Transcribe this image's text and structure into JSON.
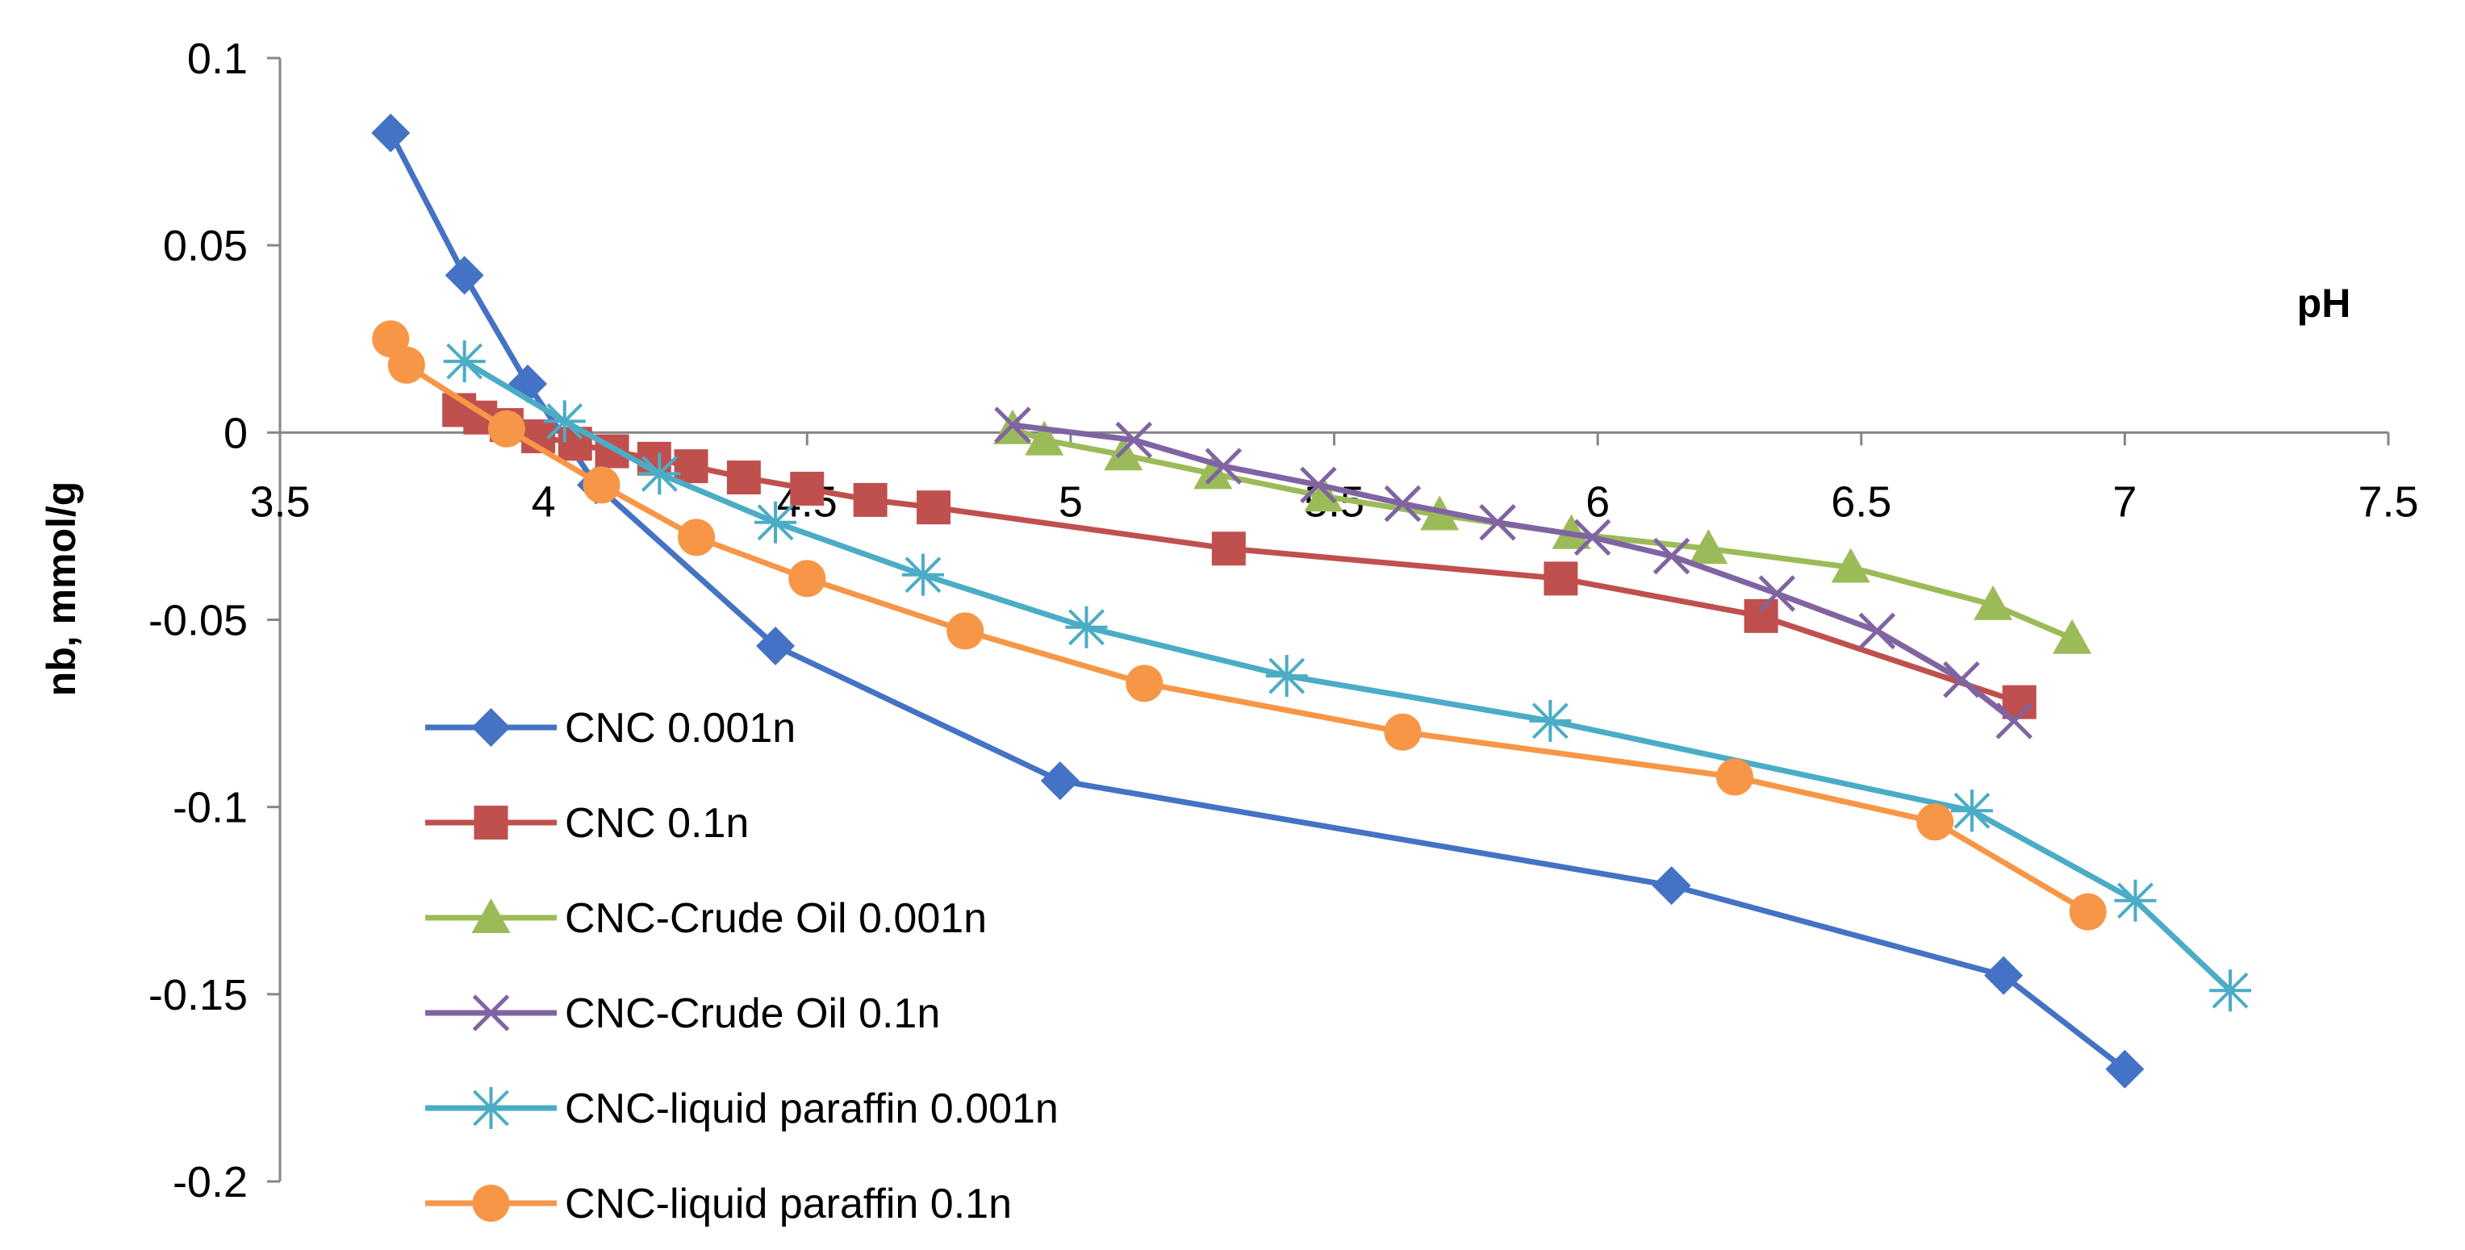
{
  "chart_data": {
    "type": "line",
    "title": "",
    "xlabel": "pH",
    "ylabel": "nb, mmol/g",
    "xlim": [
      3.5,
      7.5
    ],
    "ylim": [
      -0.2,
      0.1
    ],
    "x_ticks": [
      "3.5",
      "4",
      "4.5",
      "5",
      "5.5",
      "6",
      "6.5",
      "7",
      "7.5"
    ],
    "y_ticks": [
      "0.1",
      "0.05",
      "0",
      "-0.05",
      "-0.1",
      "-0.15",
      "-0.2"
    ],
    "x_tick_values": [
      3.5,
      4,
      4.5,
      5,
      5.5,
      6,
      6.5,
      7,
      7.5
    ],
    "y_tick_values": [
      0.1,
      0.05,
      0,
      -0.05,
      -0.1,
      -0.15,
      -0.2
    ],
    "legend_position": "lower-left",
    "series": [
      {
        "name": "CNC 0.001n",
        "color": "#4472C4",
        "marker": "diamond",
        "x": [
          3.71,
          3.85,
          3.97,
          4.1,
          4.44,
          4.98,
          6.14,
          6.77,
          7.0
        ],
        "y": [
          0.08,
          0.042,
          0.013,
          -0.014,
          -0.057,
          -0.093,
          -0.121,
          -0.145,
          -0.17
        ]
      },
      {
        "name": "CNC 0.1n",
        "color": "#C0504D",
        "marker": "square",
        "x": [
          3.84,
          3.88,
          3.93,
          3.99,
          4.06,
          4.13,
          4.21,
          4.28,
          4.38,
          4.5,
          4.62,
          4.74,
          5.3,
          5.93,
          6.31,
          6.8
        ],
        "y": [
          0.006,
          0.004,
          0.002,
          -0.001,
          -0.003,
          -0.005,
          -0.007,
          -0.009,
          -0.012,
          -0.015,
          -0.018,
          -0.02,
          -0.031,
          -0.039,
          -0.049,
          -0.072
        ]
      },
      {
        "name": "CNC-Crude Oil 0.001n",
        "color": "#9BBB59",
        "marker": "triangle",
        "x": [
          4.89,
          4.95,
          5.1,
          5.27,
          5.48,
          5.7,
          5.95,
          6.21,
          6.48,
          6.75,
          6.9
        ],
        "y": [
          0.001,
          -0.002,
          -0.006,
          -0.011,
          -0.017,
          -0.022,
          -0.027,
          -0.031,
          -0.036,
          -0.046,
          -0.055
        ]
      },
      {
        "name": "CNC-Crude Oil 0.1n",
        "color": "#8064A2",
        "marker": "x",
        "x": [
          4.89,
          5.12,
          5.29,
          5.47,
          5.63,
          5.81,
          5.99,
          6.14,
          6.34,
          6.53,
          6.69,
          6.79
        ],
        "y": [
          0.002,
          -0.002,
          -0.009,
          -0.014,
          -0.019,
          -0.024,
          -0.028,
          -0.033,
          -0.043,
          -0.053,
          -0.066,
          -0.077
        ]
      },
      {
        "name": "CNC-liquid paraffin 0.001n",
        "color": "#4BACC6",
        "marker": "star",
        "x": [
          3.85,
          4.04,
          4.22,
          4.44,
          4.72,
          5.03,
          5.41,
          5.91,
          6.71,
          7.02,
          7.2
        ],
        "y": [
          0.019,
          0.003,
          -0.011,
          -0.024,
          -0.038,
          -0.052,
          -0.065,
          -0.077,
          -0.101,
          -0.125,
          -0.149
        ]
      },
      {
        "name": "CNC-liquid paraffin 0.1n",
        "color": "#F79646",
        "marker": "circle",
        "x": [
          3.71,
          3.74,
          3.93,
          4.11,
          4.29,
          4.5,
          4.8,
          5.14,
          5.63,
          6.26,
          6.64,
          6.93
        ],
        "y": [
          0.025,
          0.018,
          0.001,
          -0.014,
          -0.028,
          -0.039,
          -0.053,
          -0.067,
          -0.08,
          -0.092,
          -0.104,
          -0.128
        ]
      }
    ]
  }
}
